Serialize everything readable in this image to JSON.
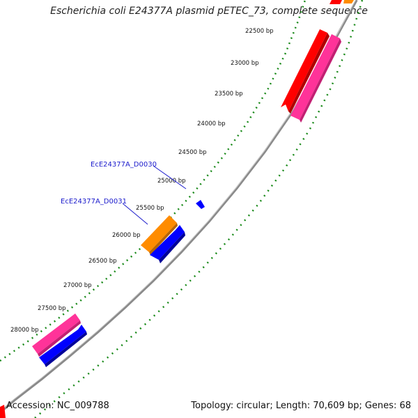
{
  "title": "Escherichia coli E24377A plasmid pETEC_73, complete sequence",
  "footer": {
    "accession": "Accession: NC_009788",
    "summary": "Topology: circular; Length: 70,609 bp; Genes: 68"
  },
  "colors": {
    "backbone": "#8a8a8a",
    "ticks": "#1a8a1a",
    "red": "#ff0000",
    "pink": "#ff3399",
    "blue": "#0000ff",
    "orange": "#ff8c00",
    "label": "#1a1acc"
  },
  "map": {
    "bp_labels": [
      "22500 bp",
      "23000 bp",
      "23500 bp",
      "24000 bp",
      "24500 bp",
      "25000 bp",
      "25500 bp",
      "26000 bp",
      "26500 bp",
      "27000 bp",
      "27500 bp",
      "28000 bp"
    ],
    "gene_labels": [
      {
        "text": "EcE24377A_D0030"
      },
      {
        "text": "EcE24377A_D0031"
      }
    ],
    "features": [
      {
        "color": "red",
        "ring": "outer"
      },
      {
        "color": "pink",
        "ring": "inner"
      },
      {
        "color": "orange",
        "ring": "outer"
      },
      {
        "color": "blue",
        "ring": "inner"
      },
      {
        "color": "blue",
        "ring": "inner"
      },
      {
        "color": "pink",
        "ring": "outer"
      },
      {
        "color": "blue",
        "ring": "inner"
      }
    ]
  }
}
